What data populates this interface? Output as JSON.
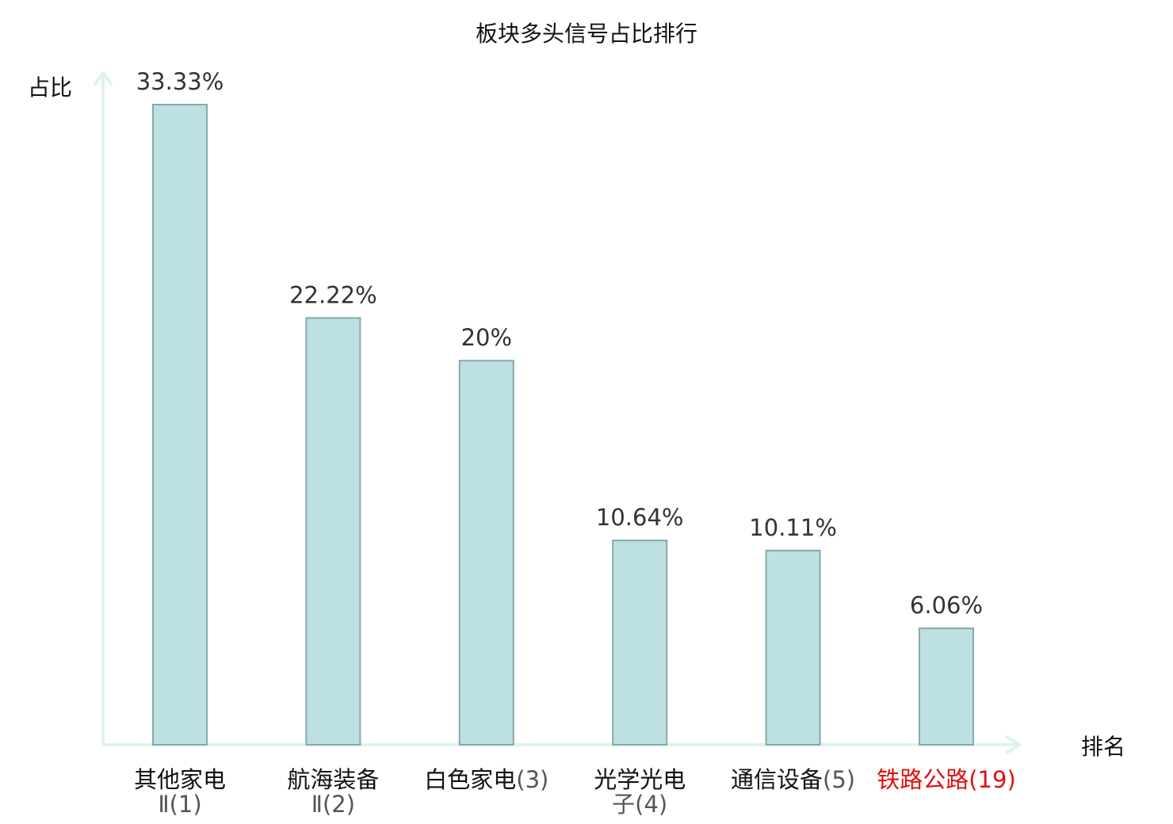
{
  "chart_data": {
    "type": "bar",
    "title": "板块多头信号占比排行",
    "ylabel": "占比",
    "xlabel": "排名",
    "categories": [
      {
        "name_lines": [
          "其他家电"
        ],
        "rank": "Ⅱ(1)",
        "highlight": false
      },
      {
        "name_lines": [
          "航海装备"
        ],
        "rank": "Ⅱ(2)",
        "highlight": false
      },
      {
        "name_lines": [
          "白色家电"
        ],
        "rank": "(3)",
        "highlight": false,
        "rank_inline": true
      },
      {
        "name_lines": [
          "光学光电"
        ],
        "rank": "子(4)",
        "highlight": false
      },
      {
        "name_lines": [
          "通信设备"
        ],
        "rank": "(5)",
        "highlight": false,
        "rank_inline": true
      },
      {
        "name_lines": [
          "铁路公路"
        ],
        "rank": "(19)",
        "highlight": true,
        "rank_inline": true
      }
    ],
    "values": [
      33.33,
      22.22,
      20,
      10.64,
      10.11,
      6.06
    ],
    "value_labels": [
      "33.33%",
      "22.22%",
      "20%",
      "10.64%",
      "10.11%",
      "6.06%"
    ],
    "ylim": [
      0,
      35
    ],
    "grid": false,
    "colors": {
      "bar_fill": "#bde0e2",
      "bar_stroke": "#86a9ab",
      "axis": "#dff2ef",
      "highlight_text": "#e01010"
    }
  }
}
